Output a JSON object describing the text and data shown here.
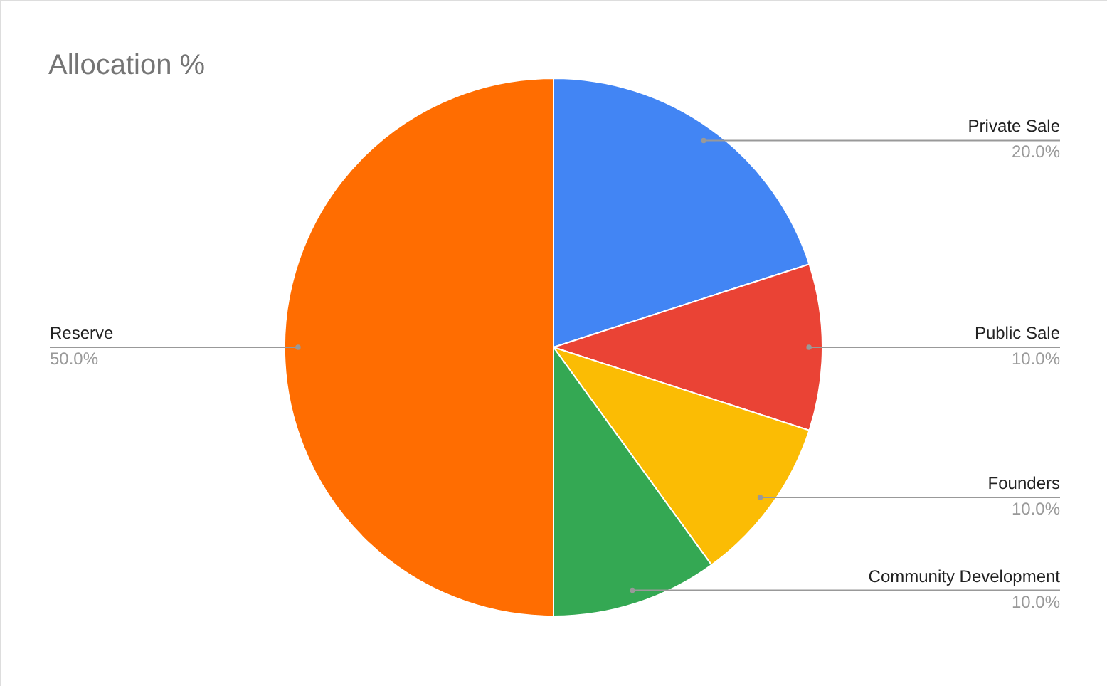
{
  "chart_data": {
    "type": "pie",
    "title": "Allocation %",
    "categories": [
      "Private Sale",
      "Public Sale",
      "Founders",
      "Community Development",
      "Reserve"
    ],
    "values": [
      20,
      10,
      10,
      10,
      50
    ],
    "colors": [
      "#4285f4",
      "#ea4335",
      "#fbbc04",
      "#34a853",
      "#ff6d01"
    ],
    "value_labels": [
      "20.0%",
      "10.0%",
      "10.0%",
      "10.0%",
      "50.0%"
    ]
  }
}
